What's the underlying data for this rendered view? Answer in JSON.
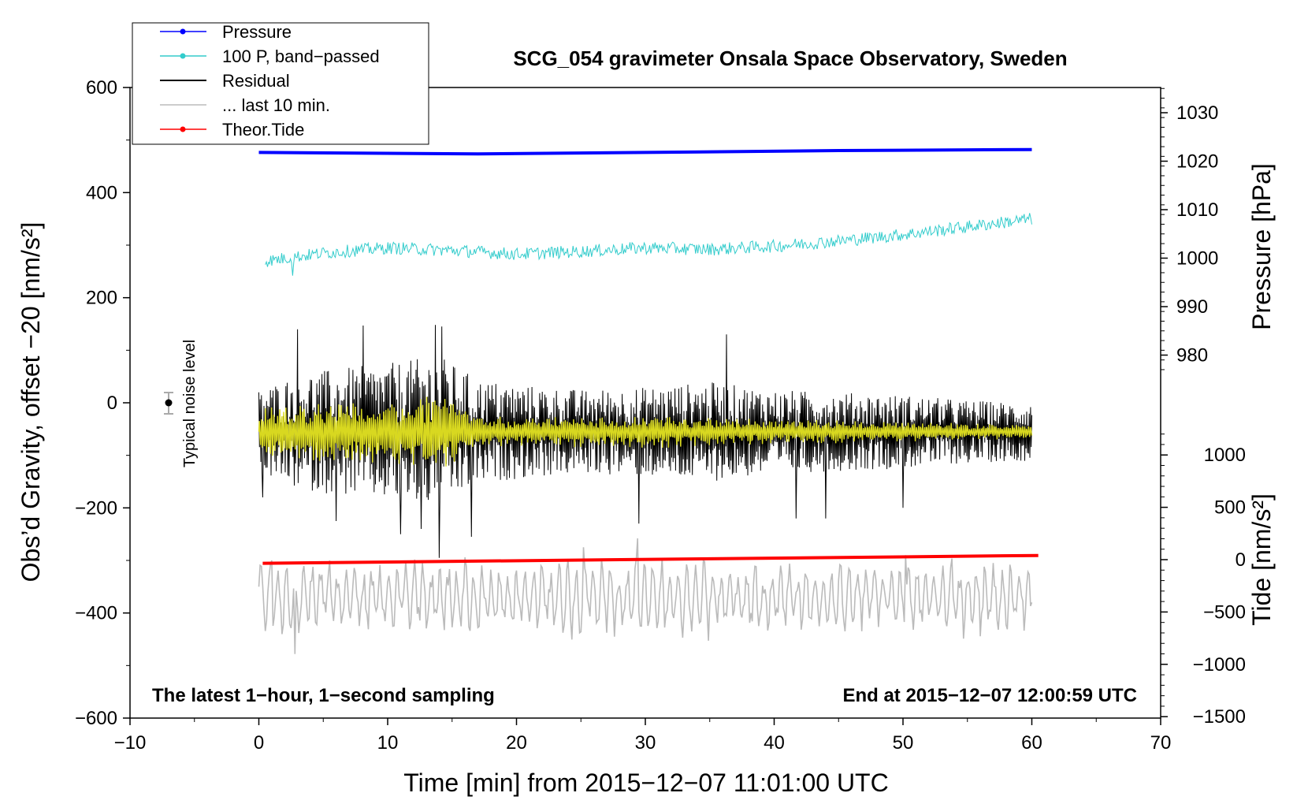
{
  "chart_data": {
    "type": "line",
    "title": "SCG_054 gravimeter Onsala Space Observatory, Sweden",
    "xlabel": "Time [min] from 2015−12−07 11:01:00 UTC",
    "ylabel_left": "Obs’d Gravity, offset −20 [nm/s²]",
    "ylabel_right_pressure": "Pressure [hPa]",
    "ylabel_right_tide": "Tide [nm/s²]",
    "xlim": [
      -10,
      70
    ],
    "ylim_left": [
      -600,
      600
    ],
    "x_ticks": [
      "−10",
      "0",
      "10",
      "20",
      "30",
      "40",
      "50",
      "60",
      "70"
    ],
    "y_ticks_left": [
      "600",
      "400",
      "200",
      "0",
      "−200",
      "−400",
      "−600"
    ],
    "pressure_ticks": [
      "1030",
      "1020",
      "1010",
      "1000",
      "990",
      "980"
    ],
    "tide_ticks": [
      "1000",
      "500",
      "0",
      "−500",
      "−1000",
      "−1500"
    ],
    "annotation_left": "The latest 1−hour, 1−second sampling",
    "annotation_right": "End at 2015−12−07 12:00:59 UTC",
    "noise_label": "Typical noise level",
    "legend": [
      {
        "label": "Pressure",
        "color": "#0000ff",
        "marker": true
      },
      {
        "label": "100 P, band−passed",
        "color": "#33cccc",
        "marker": true
      },
      {
        "label": "Residual",
        "color": "#000000",
        "marker": false
      },
      {
        "label": "... last 10 min.",
        "color": "#bbbbbb",
        "marker": false
      },
      {
        "label": "Theor.Tide",
        "color": "#ff0000",
        "marker": true
      }
    ],
    "series": [
      {
        "name": "Pressure",
        "axis": "pressure_hPa",
        "color": "#0000ff",
        "x": [
          0,
          17,
          30,
          45,
          60
        ],
        "y": [
          1021.8,
          1021.5,
          1021.8,
          1022.2,
          1022.4
        ]
      },
      {
        "name": "100 P, band-passed",
        "axis": "left_nm_s2",
        "color": "#33cccc",
        "x": [
          0,
          5,
          10,
          15,
          20,
          25,
          30,
          35,
          40,
          45,
          50,
          55,
          60
        ],
        "y": [
          268,
          285,
          295,
          290,
          283,
          288,
          295,
          292,
          298,
          308,
          320,
          335,
          350
        ],
        "noise_amplitude": 12
      },
      {
        "name": "Residual",
        "axis": "left_nm_s2",
        "color": "#000000",
        "x_range": [
          0,
          60
        ],
        "center": -55,
        "envelope_x": [
          0,
          3,
          6,
          10,
          14,
          17,
          20,
          25,
          30,
          35,
          40,
          45,
          50,
          55,
          60
        ],
        "envelope_amp": [
          80,
          110,
          120,
          130,
          145,
          100,
          90,
          80,
          85,
          95,
          80,
          75,
          70,
          60,
          55
        ],
        "extremes": [
          [
            0.3,
            -180
          ],
          [
            3,
            140
          ],
          [
            6,
            -225
          ],
          [
            8.1,
            147
          ],
          [
            11,
            -250
          ],
          [
            12.6,
            -240
          ],
          [
            13.7,
            148
          ],
          [
            14,
            -295
          ],
          [
            14.2,
            145
          ],
          [
            16.5,
            -255
          ],
          [
            29.5,
            -230
          ],
          [
            36.3,
            130
          ],
          [
            41.7,
            -220
          ],
          [
            44,
            -220
          ],
          [
            50,
            -200
          ]
        ]
      },
      {
        "name": "Residual band-passed (yellow)",
        "axis": "left_nm_s2",
        "color": "#d8d820",
        "x_range": [
          0,
          60
        ],
        "center": -55,
        "envelope_x": [
          0,
          5,
          10,
          14,
          17,
          20,
          30,
          40,
          50,
          60
        ],
        "envelope_amp": [
          40,
          55,
          55,
          70,
          30,
          25,
          30,
          22,
          18,
          12
        ]
      },
      {
        "name": "... last 10 min.",
        "axis": "left_nm_s2",
        "color": "#bbbbbb",
        "x_range": [
          0,
          60
        ],
        "center": -370,
        "amplitude": 55,
        "extremes": [
          [
            0,
            -350
          ],
          [
            1,
            -300
          ],
          [
            2.8,
            -478
          ],
          [
            5.5,
            -300
          ],
          [
            25.2,
            -275
          ],
          [
            29.4,
            -258
          ],
          [
            50.2,
            -290
          ],
          [
            57,
            -305
          ],
          [
            60,
            -380
          ]
        ]
      },
      {
        "name": "Theor.Tide",
        "axis": "tide_nm_s2",
        "color": "#ff0000",
        "x": [
          0.3,
          60.5
        ],
        "y": [
          -35,
          40
        ]
      }
    ]
  }
}
